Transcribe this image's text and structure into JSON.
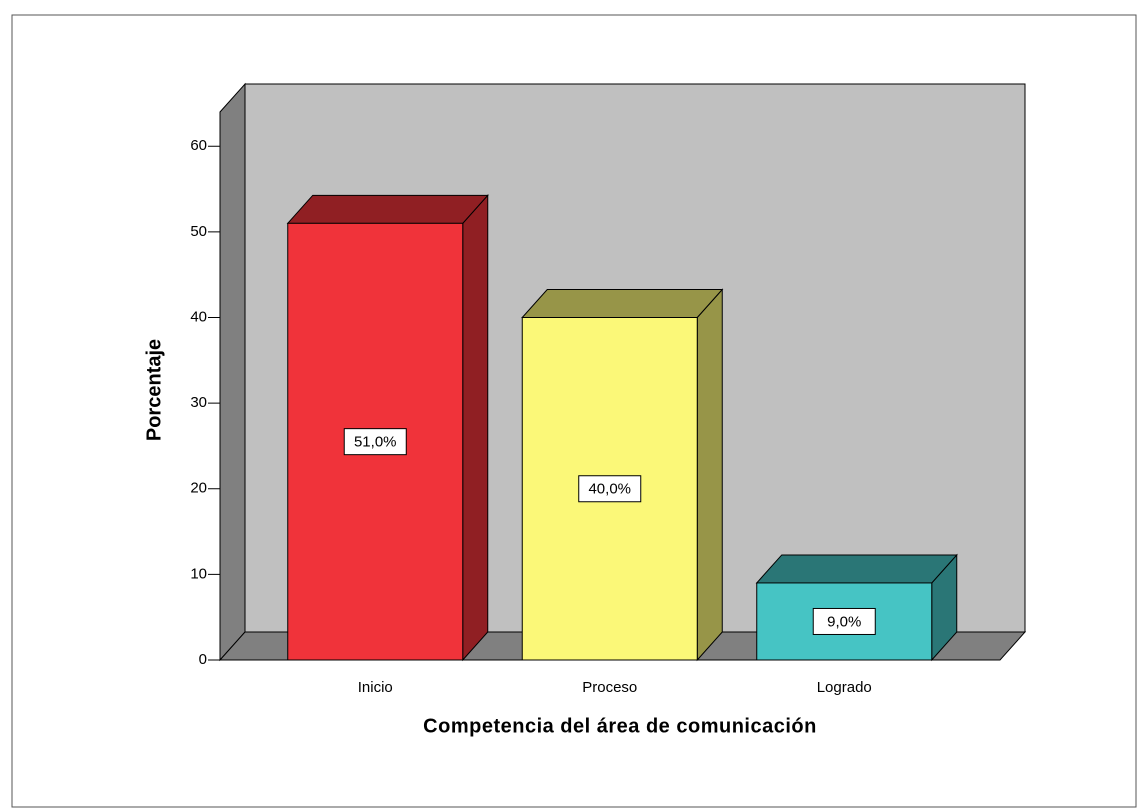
{
  "chart_data": {
    "type": "bar3d",
    "x_label": "Competencia del área de comunicación",
    "y_label": "Porcentaje",
    "categories": [
      "Inicio",
      "Proceso",
      "Logrado"
    ],
    "values": [
      51.0,
      40.0,
      9.0
    ],
    "value_labels": [
      "51,0%",
      "40,0%",
      "9,0%"
    ],
    "colors": [
      "#f0333a",
      "#fbf878",
      "#46c4c4"
    ],
    "ylim": [
      0,
      64
    ],
    "yticks": [
      0,
      10,
      20,
      30,
      40,
      50,
      60
    ]
  }
}
